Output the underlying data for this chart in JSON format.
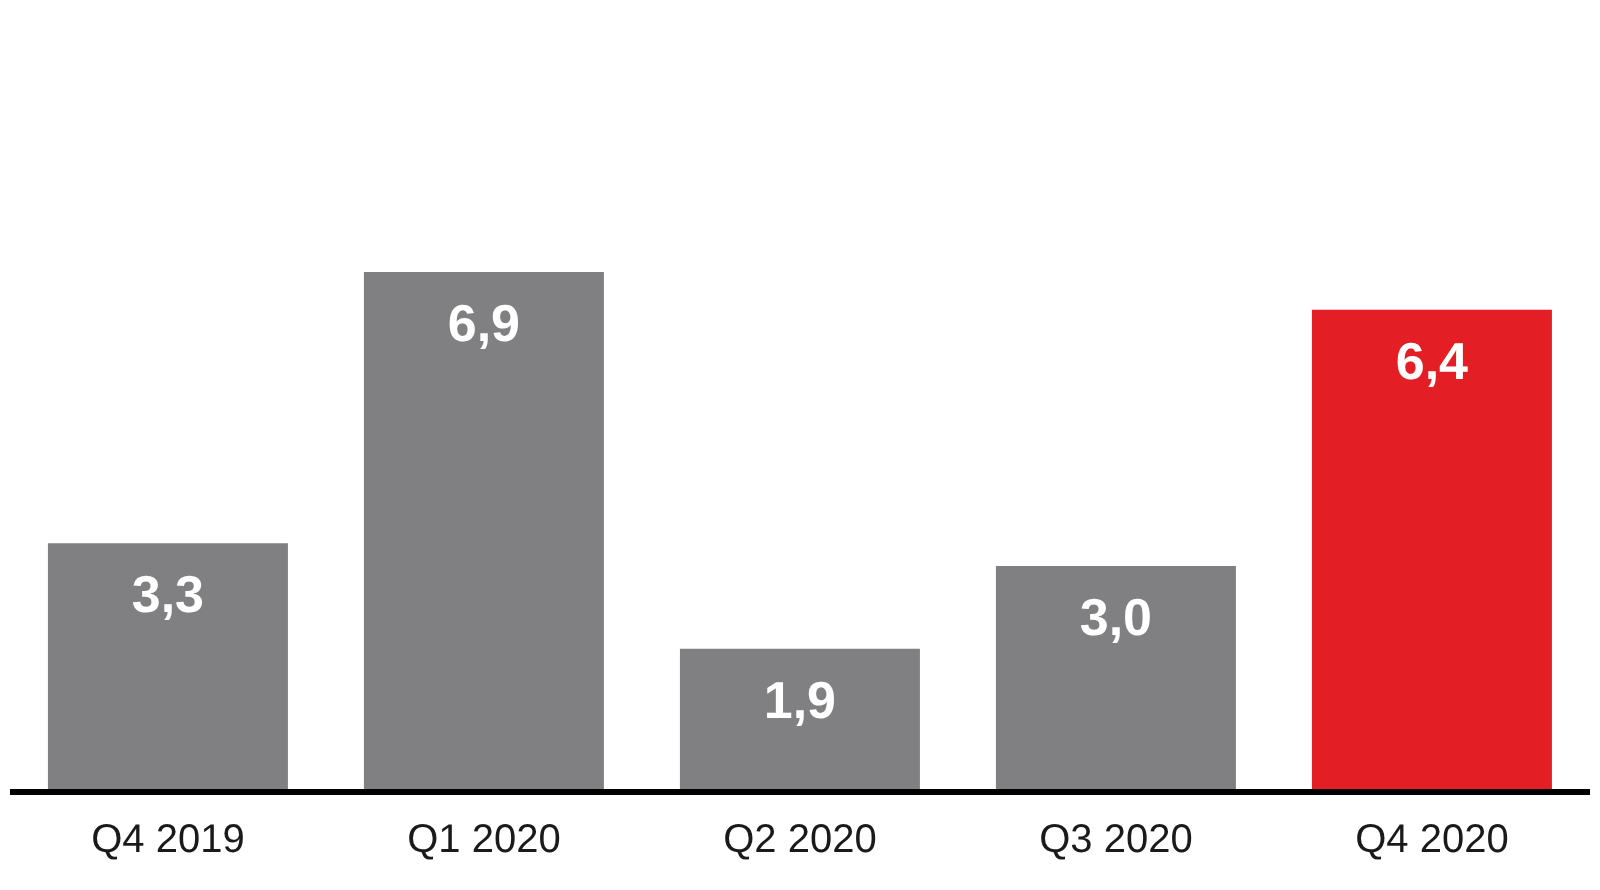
{
  "chart_data": {
    "type": "bar",
    "categories": [
      "Q4 2019",
      "Q1 2020",
      "Q2 2020",
      "Q3 2020",
      "Q4 2020"
    ],
    "values": [
      3.3,
      6.9,
      1.9,
      3.0,
      6.4
    ],
    "colors": [
      "#808083",
      "#808083",
      "#808083",
      "#808083",
      "#e31e24"
    ],
    "value_labels": [
      "3,3",
      "6,9",
      "1,9",
      "3,0",
      "6,4"
    ],
    "grid": false,
    "legend": false
  }
}
